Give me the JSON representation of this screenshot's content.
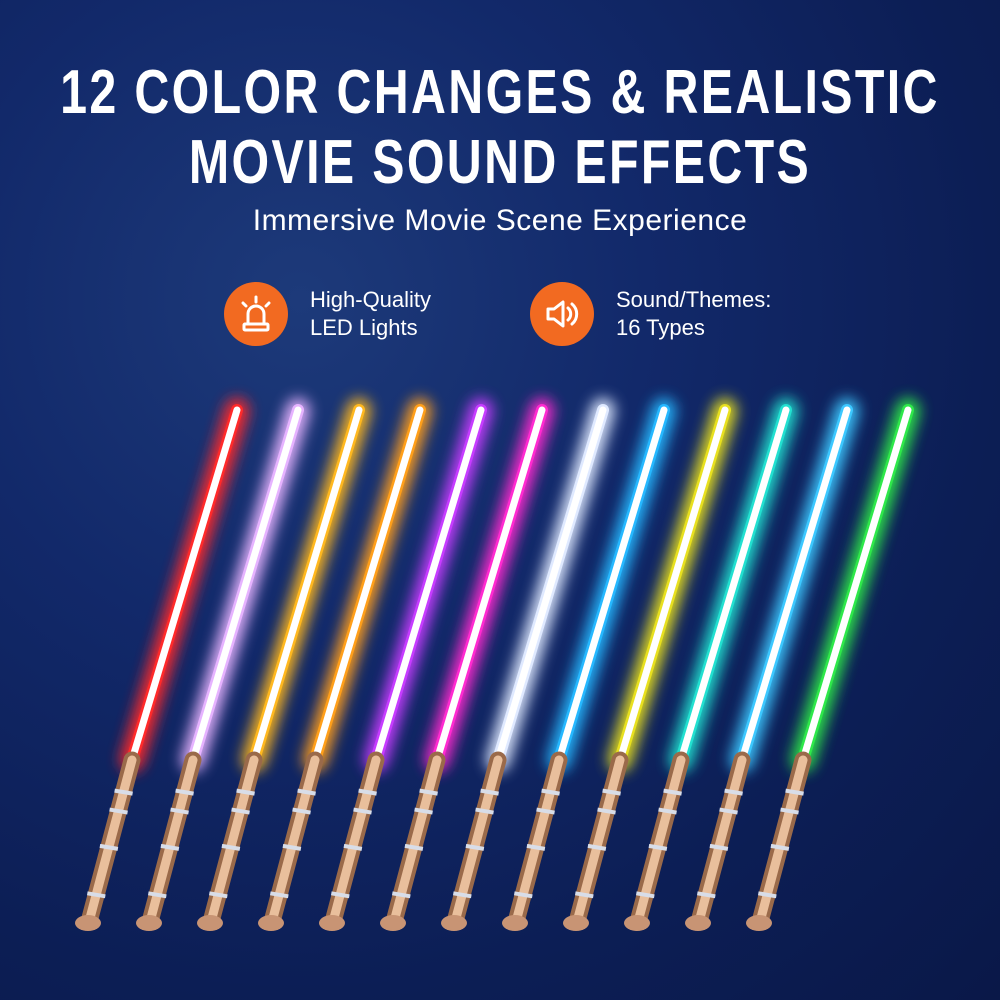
{
  "headline": {
    "line1": "12 COLOR CHANGES & REALISTIC",
    "line2": "MOVIE SOUND EFFECTS"
  },
  "subtitle": "Immersive Movie Scene Experience",
  "features": [
    {
      "icon": "siren-light-icon",
      "line1": "High-Quality",
      "line2": "LED Lights"
    },
    {
      "icon": "speaker-icon",
      "line1": "Sound/Themes:",
      "line2": "16 Types"
    }
  ],
  "colors": {
    "accent": "#f26a21",
    "background": "#12296a"
  },
  "saber_colors": [
    "#ff2a2a",
    "#e6b3ff",
    "#ffb81f",
    "#ff9f1a",
    "#c63cff",
    "#ff2ad0",
    "#dfe9ff",
    "#26b8ff",
    "#e8e01f",
    "#22e0d0",
    "#3cc8ff",
    "#2ee84a"
  ]
}
